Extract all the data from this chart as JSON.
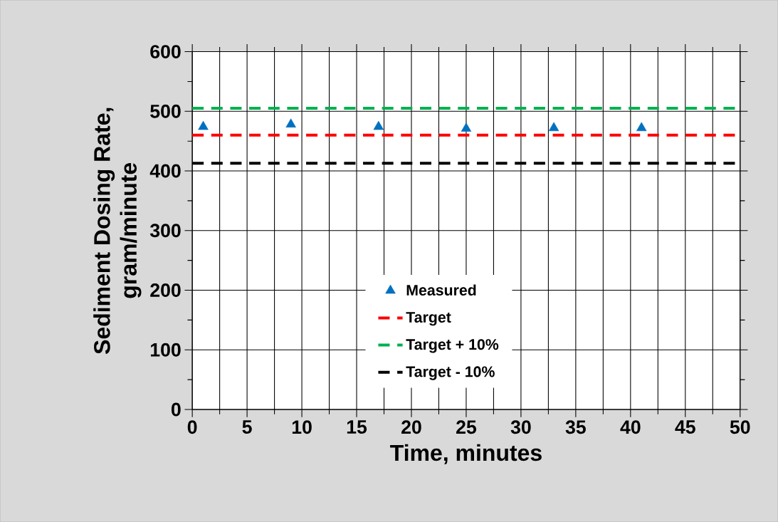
{
  "chart_data": {
    "type": "scatter",
    "xlabel": "Time, minutes",
    "ylabel": "Sediment Dosing Rate, gram/minute",
    "xlim": [
      0,
      50
    ],
    "ylim": [
      0,
      600
    ],
    "xticks": [
      0,
      5,
      10,
      15,
      20,
      25,
      30,
      35,
      40,
      45,
      50
    ],
    "yticks": [
      0,
      100,
      200,
      300,
      400,
      500,
      600
    ],
    "grid": true,
    "legend": "bottom",
    "series": [
      {
        "name": "Measured",
        "marker": "triangle",
        "color": "#0070c0",
        "x": [
          1,
          9,
          17,
          25,
          33,
          41
        ],
        "values": [
          474,
          478,
          474,
          471,
          472,
          472
        ]
      },
      {
        "name": "Target",
        "type": "line",
        "line_style": "dashed",
        "color": "#ff0000",
        "x": [
          0,
          50
        ],
        "values": [
          460,
          460
        ]
      },
      {
        "name": "Target + 10%",
        "type": "line",
        "line_style": "dashed",
        "color": "#00b050",
        "x": [
          0,
          50
        ],
        "values": [
          505,
          505
        ]
      },
      {
        "name": "Target - 10%",
        "type": "line",
        "line_style": "dashed",
        "color": "#000000",
        "x": [
          0,
          50
        ],
        "values": [
          413,
          413
        ]
      }
    ]
  }
}
